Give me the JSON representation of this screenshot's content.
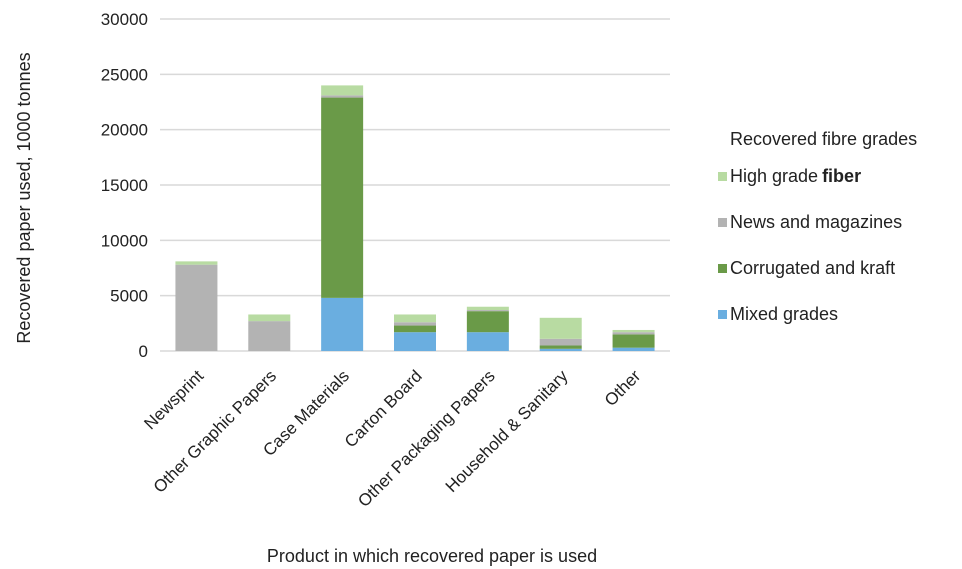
{
  "chart_data": {
    "type": "bar",
    "stacked": true,
    "categories": [
      "Newsprint",
      "Other Graphic Papers",
      "Case Materials",
      "Carton Board",
      "Other Packaging Papers",
      "Household & Sanitary",
      "Other"
    ],
    "series": [
      {
        "name": "Mixed grades",
        "color": "#6aaee0",
        "values": [
          0,
          0,
          4800,
          1700,
          1700,
          200,
          300
        ]
      },
      {
        "name": "Corrugated and kraft",
        "color": "#6a9a48",
        "values": [
          0,
          0,
          18100,
          600,
          1900,
          300,
          1200
        ]
      },
      {
        "name": "News and magazines",
        "color": "#b3b3b3",
        "values": [
          7800,
          2700,
          200,
          300,
          100,
          600,
          200
        ]
      },
      {
        "name": "High grade",
        "name_bold_suffix": "fiber",
        "color": "#b8dba2",
        "values": [
          300,
          600,
          900,
          700,
          300,
          1900,
          200
        ]
      }
    ],
    "ylim": [
      0,
      30000
    ],
    "yticks": [
      "0",
      "5000",
      "10000",
      "15000",
      "20000",
      "25000",
      "30000"
    ],
    "ylabel": "Recovered paper used, 1000 tonnes",
    "xlabel": "Product in which recovered paper is used",
    "legend": {
      "title": "Recovered fibre grades",
      "position": "right",
      "order": [
        "High grade",
        "News and magazines",
        "Corrugated and kraft",
        "Mixed grades"
      ]
    },
    "grid": true
  }
}
